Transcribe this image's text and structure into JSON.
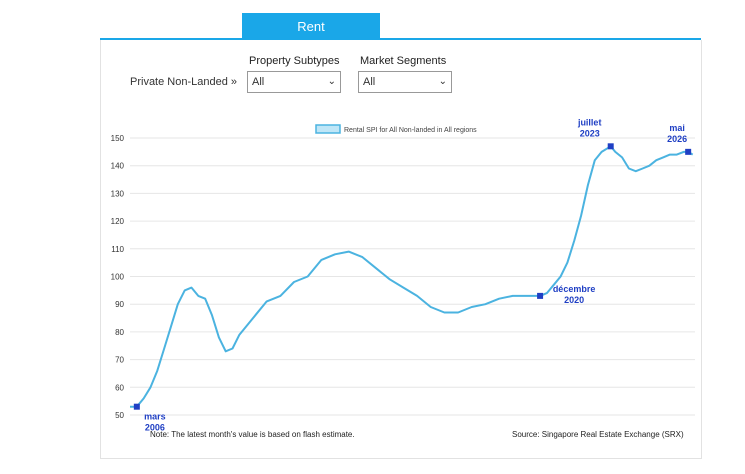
{
  "tab": {
    "label": "Rent"
  },
  "breadcrumb": {
    "label": "Private Non-Landed »"
  },
  "filters": {
    "subtypes_label": "Property Subtypes",
    "subtypes_value": "All",
    "segments_label": "Market Segments",
    "segments_value": "All"
  },
  "colors": {
    "line": "#4bb3e0",
    "marker": "#1f3fc4",
    "annotation": "#1f3fc4",
    "tab": "#1aa7e8"
  },
  "chart_data": {
    "type": "line",
    "ylim": [
      50,
      150
    ],
    "yticks": [
      50,
      60,
      70,
      80,
      90,
      100,
      110,
      120,
      130,
      140,
      150
    ],
    "grid": true,
    "legend": {
      "label": "Rental SPI for All Non-landed in All regions",
      "position": "top"
    },
    "series": [
      {
        "name": "Rental SPI for All Non-landed in All regions",
        "x": [
          "2005-12",
          "2006-03",
          "2006-06",
          "2006-09",
          "2006-12",
          "2007-03",
          "2007-06",
          "2007-09",
          "2007-12",
          "2008-03",
          "2008-06",
          "2008-09",
          "2008-12",
          "2009-03",
          "2009-06",
          "2009-09",
          "2009-12",
          "2010-06",
          "2010-12",
          "2011-06",
          "2011-12",
          "2012-06",
          "2012-12",
          "2013-06",
          "2013-12",
          "2014-06",
          "2014-12",
          "2015-06",
          "2015-12",
          "2016-06",
          "2016-12",
          "2017-06",
          "2017-12",
          "2018-06",
          "2018-12",
          "2019-06",
          "2019-12",
          "2020-06",
          "2020-12",
          "2021-03",
          "2021-06",
          "2021-09",
          "2021-12",
          "2022-03",
          "2022-06",
          "2022-09",
          "2022-12",
          "2023-03",
          "2023-07",
          "2023-09",
          "2023-12",
          "2024-03",
          "2024-06",
          "2024-09",
          "2024-12",
          "2025-03",
          "2025-06",
          "2025-09",
          "2025-12",
          "2026-03",
          "2026-05",
          "2026-07"
        ],
        "values": [
          53,
          53,
          56,
          60,
          66,
          74,
          82,
          90,
          95,
          96,
          93,
          92,
          86,
          78,
          73,
          74,
          79,
          85,
          91,
          93,
          98,
          100,
          106,
          108,
          109,
          107,
          103,
          99,
          96,
          93,
          89,
          87,
          87,
          89,
          90,
          92,
          93,
          93,
          93,
          94,
          97,
          100,
          105,
          113,
          122,
          133,
          142,
          145,
          147,
          145,
          143,
          139,
          138,
          139,
          140,
          142,
          143,
          144,
          144,
          145,
          145,
          144
        ]
      }
    ],
    "annotations": [
      {
        "x": "2006-03",
        "value": 53,
        "line1": "mars",
        "line2": "2006"
      },
      {
        "x": "2020-12",
        "value": 93,
        "line1": "décembre",
        "line2": "2020"
      },
      {
        "x": "2023-07",
        "value": 147,
        "line1": "juillet",
        "line2": "2023"
      },
      {
        "x": "2026-05",
        "value": 145,
        "line1": "mai",
        "line2": "2026"
      }
    ],
    "footnote": "Note: The latest month's value is based on flash estimate.",
    "source": "Source: Singapore Real Estate Exchange (SRX)"
  }
}
